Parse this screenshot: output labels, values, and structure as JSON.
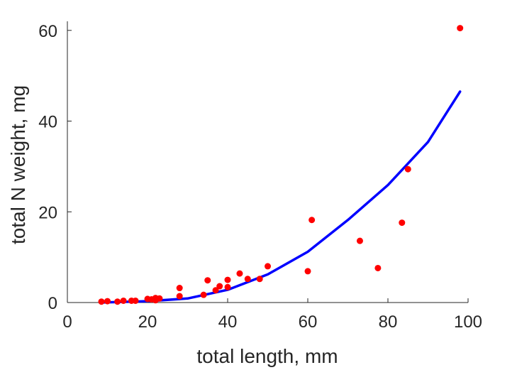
{
  "chart_data": {
    "type": "scatter",
    "xlabel": "total length, mm",
    "ylabel": "total N weight, mg",
    "xlim": [
      0,
      100
    ],
    "ylim": [
      0,
      62
    ],
    "xticks": [
      "0",
      "20",
      "40",
      "60",
      "80",
      "100"
    ],
    "yticks": [
      "0",
      "20",
      "40",
      "60"
    ],
    "grid": false,
    "legend": "none",
    "colors": {
      "points": "#ff0000",
      "fit": "#0000ff",
      "axis": "#262626"
    },
    "series": [
      {
        "kind": "points",
        "x": [
          8.5,
          10,
          12.5,
          14,
          16,
          17,
          20,
          21,
          22,
          22,
          23,
          28,
          28,
          34,
          35,
          37,
          38,
          40,
          40,
          43,
          45,
          48,
          50,
          60,
          61,
          73,
          77.5,
          83.5,
          85,
          98
        ],
        "y": [
          0.2,
          0.3,
          0.2,
          0.4,
          0.4,
          0.4,
          0.8,
          0.7,
          0.5,
          1.0,
          0.9,
          3.2,
          1.4,
          1.7,
          4.9,
          2.7,
          3.6,
          3.4,
          5.0,
          6.4,
          5.2,
          5.2,
          8.0,
          6.9,
          18.2,
          13.6,
          7.6,
          17.6,
          29.4,
          60.5
        ]
      },
      {
        "kind": "fit",
        "type": "line",
        "x": [
          9,
          20,
          30,
          40,
          50,
          60,
          70,
          80,
          90,
          98
        ],
        "y": [
          0.015,
          0.3,
          0.9,
          2.8,
          6.2,
          11.2,
          18.2,
          25.9,
          35.4,
          46.5
        ]
      }
    ]
  }
}
